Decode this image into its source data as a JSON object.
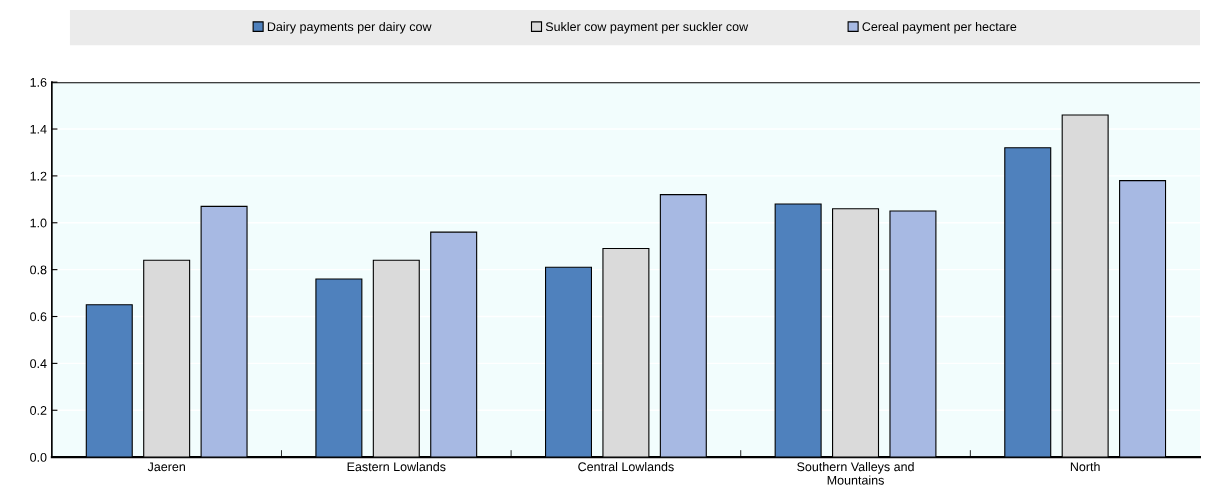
{
  "chart_data": {
    "type": "bar",
    "categories": [
      "Jaeren",
      "Eastern Lowlands",
      "Central Lowlands",
      "Southern Valleys and\nMountains",
      "North"
    ],
    "series": [
      {
        "name": "Dairy payments per dairy cow",
        "color": "#4f81bd",
        "values": [
          0.65,
          0.76,
          0.81,
          1.08,
          1.32
        ]
      },
      {
        "name": "Sukler cow payment per suckler cow",
        "color": "#dadada",
        "values": [
          0.84,
          0.84,
          0.89,
          1.06,
          1.46
        ]
      },
      {
        "name": "Cereal payment per hectare",
        "color": "#a7b9e3",
        "values": [
          1.07,
          0.96,
          1.12,
          1.05,
          1.18
        ]
      }
    ],
    "ylim": [
      0,
      1.6
    ],
    "yticks": [
      {
        "value": 0,
        "label": "0.0"
      },
      {
        "value": 0.2,
        "label": "0.2"
      },
      {
        "value": 0.4,
        "label": "0.4"
      },
      {
        "value": 0.6,
        "label": "0.6"
      },
      {
        "value": 0.8,
        "label": "0.8"
      },
      {
        "value": 1.0,
        "label": "1.0"
      },
      {
        "value": 1.2,
        "label": "1.2"
      },
      {
        "value": 1.4,
        "label": "1.4"
      },
      {
        "value": 1.6,
        "label": "1.6"
      }
    ],
    "grid": "y",
    "legend": "top"
  }
}
